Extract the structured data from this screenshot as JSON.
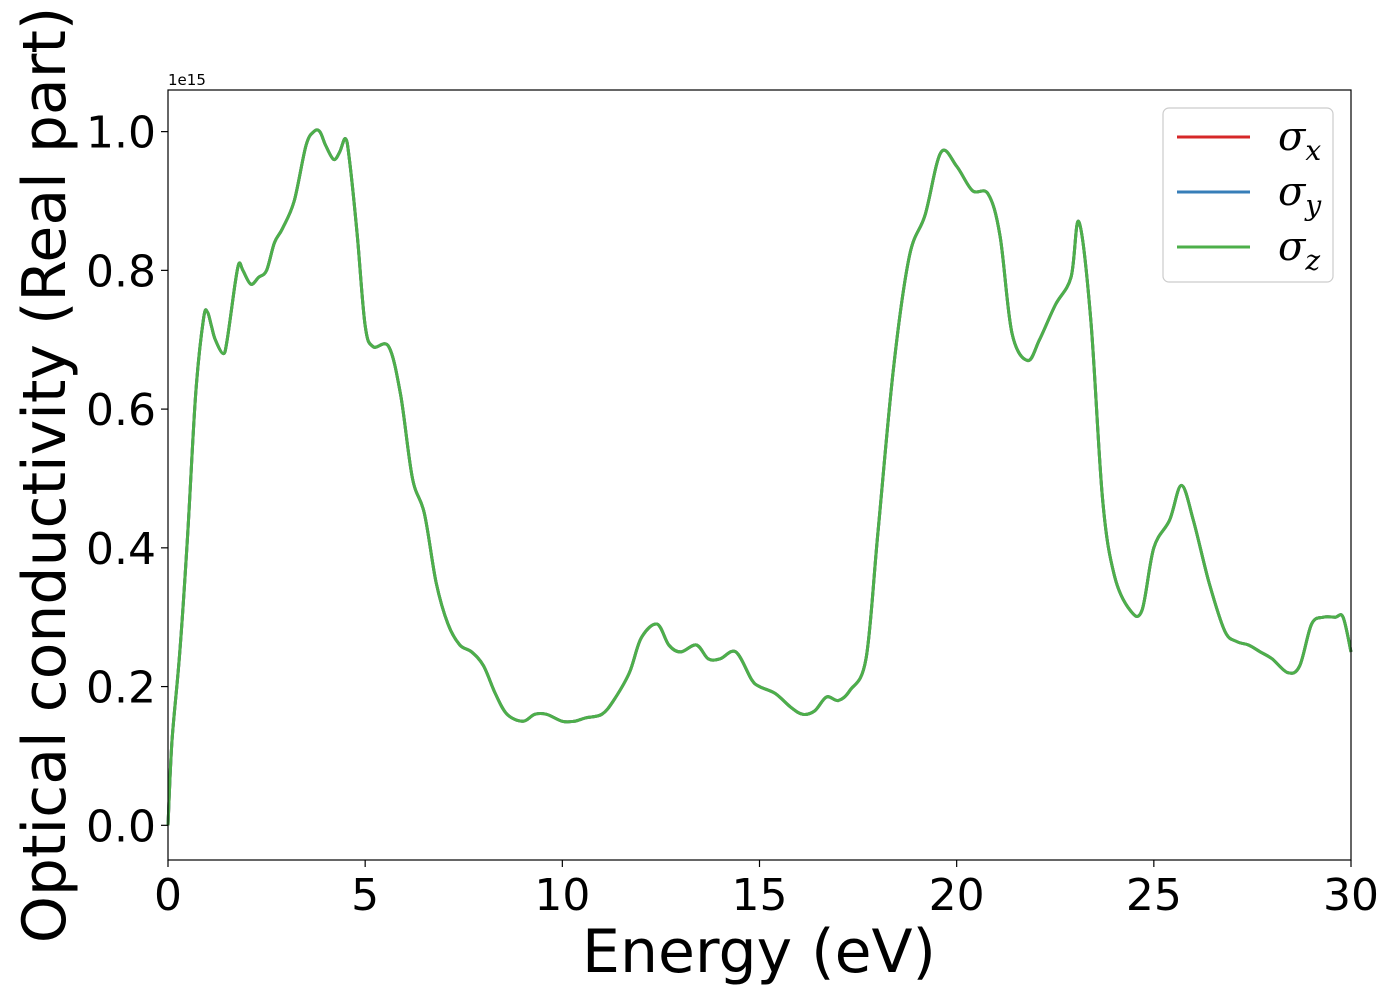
{
  "chart_data": {
    "type": "line",
    "xlabel": "Energy (eV)",
    "ylabel": "Optical conductivity (Real part)",
    "offset_text": "1e15",
    "xlim": [
      0,
      30
    ],
    "ylim": [
      -0.05,
      1.06
    ],
    "x_ticks": [
      0,
      5,
      10,
      15,
      20,
      25,
      30
    ],
    "x_tick_labels": [
      "0",
      "5",
      "10",
      "15",
      "20",
      "25",
      "30"
    ],
    "y_ticks": [
      0.0,
      0.2,
      0.4,
      0.6,
      0.8,
      1.0
    ],
    "y_tick_labels": [
      "0.0",
      "0.2",
      "0.4",
      "0.6",
      "0.8",
      "1.0"
    ],
    "grid": false,
    "legend_position": "top-right",
    "x": [
      0.0,
      0.1,
      0.3,
      0.5,
      0.7,
      0.9,
      1.0,
      1.1,
      1.2,
      1.4,
      1.5,
      1.7,
      1.8,
      1.9,
      2.1,
      2.3,
      2.5,
      2.7,
      2.9,
      3.2,
      3.5,
      3.7,
      3.85,
      4.0,
      4.2,
      4.35,
      4.5,
      4.6,
      4.8,
      5.0,
      5.2,
      5.6,
      5.9,
      6.2,
      6.5,
      6.8,
      7.1,
      7.4,
      7.7,
      8.0,
      8.3,
      8.6,
      9.0,
      9.3,
      9.6,
      10.0,
      10.3,
      10.6,
      11.0,
      11.3,
      11.7,
      12.0,
      12.4,
      12.7,
      13.0,
      13.4,
      13.7,
      14.0,
      14.4,
      14.8,
      15.0,
      15.4,
      15.8,
      16.1,
      16.4,
      16.7,
      17.0,
      17.3,
      17.7,
      18.0,
      18.4,
      18.8,
      19.2,
      19.6,
      20.0,
      20.4,
      20.8,
      21.1,
      21.4,
      21.8,
      22.1,
      22.5,
      22.9,
      23.1,
      23.4,
      23.7,
      24.0,
      24.4,
      24.7,
      25.0,
      25.4,
      25.7,
      26.0,
      26.4,
      26.8,
      27.1,
      27.4,
      27.7,
      28.0,
      28.4,
      28.7,
      29.0,
      29.3,
      29.6,
      29.8,
      30.0
    ],
    "series": [
      {
        "name": "σx",
        "color": "#d62728",
        "y": [
          0.0,
          0.12,
          0.25,
          0.42,
          0.62,
          0.73,
          0.74,
          0.72,
          0.7,
          0.68,
          0.7,
          0.78,
          0.81,
          0.8,
          0.78,
          0.79,
          0.8,
          0.84,
          0.86,
          0.9,
          0.98,
          1.0,
          1.0,
          0.98,
          0.96,
          0.97,
          0.99,
          0.96,
          0.85,
          0.72,
          0.69,
          0.69,
          0.62,
          0.5,
          0.45,
          0.35,
          0.29,
          0.26,
          0.25,
          0.23,
          0.19,
          0.16,
          0.15,
          0.16,
          0.16,
          0.15,
          0.15,
          0.155,
          0.16,
          0.18,
          0.22,
          0.27,
          0.29,
          0.26,
          0.25,
          0.26,
          0.24,
          0.24,
          0.25,
          0.21,
          0.2,
          0.19,
          0.17,
          0.16,
          0.165,
          0.185,
          0.18,
          0.195,
          0.24,
          0.42,
          0.66,
          0.82,
          0.88,
          0.97,
          0.95,
          0.915,
          0.91,
          0.85,
          0.71,
          0.67,
          0.7,
          0.75,
          0.79,
          0.87,
          0.73,
          0.47,
          0.36,
          0.31,
          0.31,
          0.4,
          0.44,
          0.49,
          0.44,
          0.35,
          0.28,
          0.265,
          0.26,
          0.25,
          0.24,
          0.22,
          0.23,
          0.29,
          0.3,
          0.3,
          0.3,
          0.25
        ]
      },
      {
        "name": "σy",
        "color": "#377eb8",
        "y": [
          0.0,
          0.12,
          0.25,
          0.42,
          0.62,
          0.73,
          0.74,
          0.72,
          0.7,
          0.68,
          0.7,
          0.78,
          0.81,
          0.8,
          0.78,
          0.79,
          0.8,
          0.84,
          0.86,
          0.9,
          0.98,
          1.0,
          1.0,
          0.98,
          0.96,
          0.97,
          0.99,
          0.96,
          0.85,
          0.72,
          0.69,
          0.69,
          0.62,
          0.5,
          0.45,
          0.35,
          0.29,
          0.26,
          0.25,
          0.23,
          0.19,
          0.16,
          0.15,
          0.16,
          0.16,
          0.15,
          0.15,
          0.155,
          0.16,
          0.18,
          0.22,
          0.27,
          0.29,
          0.26,
          0.25,
          0.26,
          0.24,
          0.24,
          0.25,
          0.21,
          0.2,
          0.19,
          0.17,
          0.16,
          0.165,
          0.185,
          0.18,
          0.195,
          0.24,
          0.42,
          0.66,
          0.82,
          0.88,
          0.97,
          0.95,
          0.915,
          0.91,
          0.85,
          0.71,
          0.67,
          0.7,
          0.75,
          0.79,
          0.87,
          0.73,
          0.47,
          0.36,
          0.31,
          0.31,
          0.4,
          0.44,
          0.49,
          0.44,
          0.35,
          0.28,
          0.265,
          0.26,
          0.25,
          0.24,
          0.22,
          0.23,
          0.29,
          0.3,
          0.3,
          0.3,
          0.25
        ]
      },
      {
        "name": "σz",
        "color": "#4daf4a",
        "y": [
          0.0,
          0.12,
          0.25,
          0.42,
          0.62,
          0.73,
          0.74,
          0.72,
          0.7,
          0.68,
          0.7,
          0.78,
          0.81,
          0.8,
          0.78,
          0.79,
          0.8,
          0.84,
          0.86,
          0.9,
          0.98,
          1.0,
          1.0,
          0.98,
          0.96,
          0.97,
          0.99,
          0.96,
          0.85,
          0.72,
          0.69,
          0.69,
          0.62,
          0.5,
          0.45,
          0.35,
          0.29,
          0.26,
          0.25,
          0.23,
          0.19,
          0.16,
          0.15,
          0.16,
          0.16,
          0.15,
          0.15,
          0.155,
          0.16,
          0.18,
          0.22,
          0.27,
          0.29,
          0.26,
          0.25,
          0.26,
          0.24,
          0.24,
          0.25,
          0.21,
          0.2,
          0.19,
          0.17,
          0.16,
          0.165,
          0.185,
          0.18,
          0.195,
          0.24,
          0.42,
          0.66,
          0.82,
          0.88,
          0.97,
          0.95,
          0.915,
          0.91,
          0.85,
          0.71,
          0.67,
          0.7,
          0.75,
          0.79,
          0.87,
          0.73,
          0.47,
          0.36,
          0.31,
          0.31,
          0.4,
          0.44,
          0.49,
          0.44,
          0.35,
          0.28,
          0.265,
          0.26,
          0.25,
          0.24,
          0.22,
          0.23,
          0.29,
          0.3,
          0.3,
          0.3,
          0.25
        ]
      }
    ],
    "legend": [
      {
        "symbol": "σ",
        "sub": "x",
        "color": "#d62728"
      },
      {
        "symbol": "σ",
        "sub": "y",
        "color": "#377eb8"
      },
      {
        "symbol": "σ",
        "sub": "z",
        "color": "#4daf4a"
      }
    ]
  }
}
